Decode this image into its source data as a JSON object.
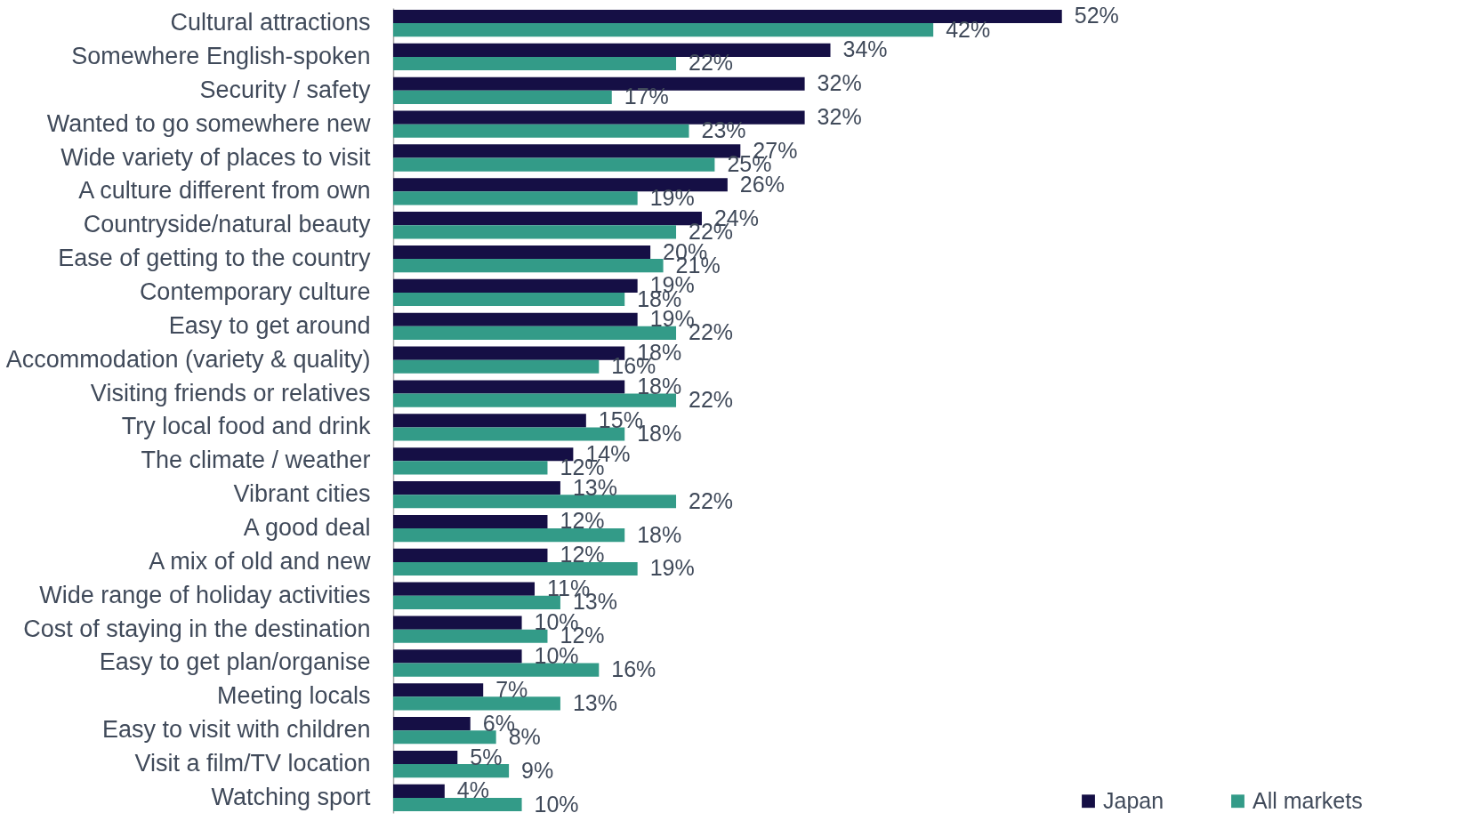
{
  "chart_data": {
    "type": "bar",
    "orientation": "horizontal",
    "legend": "bottom right",
    "categories": [
      "Cultural attractions",
      "Somewhere English-spoken",
      "Security / safety",
      "Wanted to go somewhere new",
      "Wide variety of places to visit",
      "A culture different from own",
      "Countryside/natural beauty",
      "Ease of getting to the country",
      "Contemporary culture",
      "Easy to get around",
      "Accommodation (variety & quality)",
      "Visiting friends or relatives",
      "Try local food and drink",
      "The climate / weather",
      "Vibrant cities",
      "A good deal",
      "A mix of old and new",
      "Wide range of holiday activities",
      "Cost of staying in the destination",
      "Easy to get plan/organise",
      "Meeting locals",
      "Easy to visit with children",
      "Visit a film/TV location",
      "Watching sport"
    ],
    "series": [
      {
        "name": "Japan",
        "color": "#150f45",
        "values": [
          52,
          34,
          32,
          32,
          27,
          26,
          24,
          20,
          19,
          19,
          18,
          18,
          15,
          14,
          13,
          12,
          12,
          11,
          10,
          10,
          7,
          6,
          5,
          4
        ],
        "value_labels": [
          "52%",
          "34%",
          "32%",
          "32%",
          "27%",
          "26%",
          "24%",
          "20%",
          "19%",
          "19%",
          "18%",
          "18%",
          "15%",
          "14%",
          "13%",
          "12%",
          "12%",
          "11%",
          "10%",
          "10%",
          "7%",
          "6%",
          "5%",
          "4%"
        ]
      },
      {
        "name": "All markets",
        "color": "#339b88",
        "values": [
          42,
          22,
          17,
          23,
          25,
          19,
          22,
          21,
          18,
          22,
          16,
          22,
          18,
          12,
          22,
          18,
          19,
          13,
          12,
          16,
          13,
          8,
          9,
          10
        ],
        "value_labels": [
          "42%",
          "22%",
          "17%",
          "23%",
          "25%",
          "19%",
          "22%",
          "21%",
          "18%",
          "22%",
          "16%",
          "22%",
          "18%",
          "12%",
          "22%",
          "18%",
          "19%",
          "13%",
          "12%",
          "16%",
          "13%",
          "8%",
          "9%",
          "10%"
        ]
      }
    ]
  }
}
